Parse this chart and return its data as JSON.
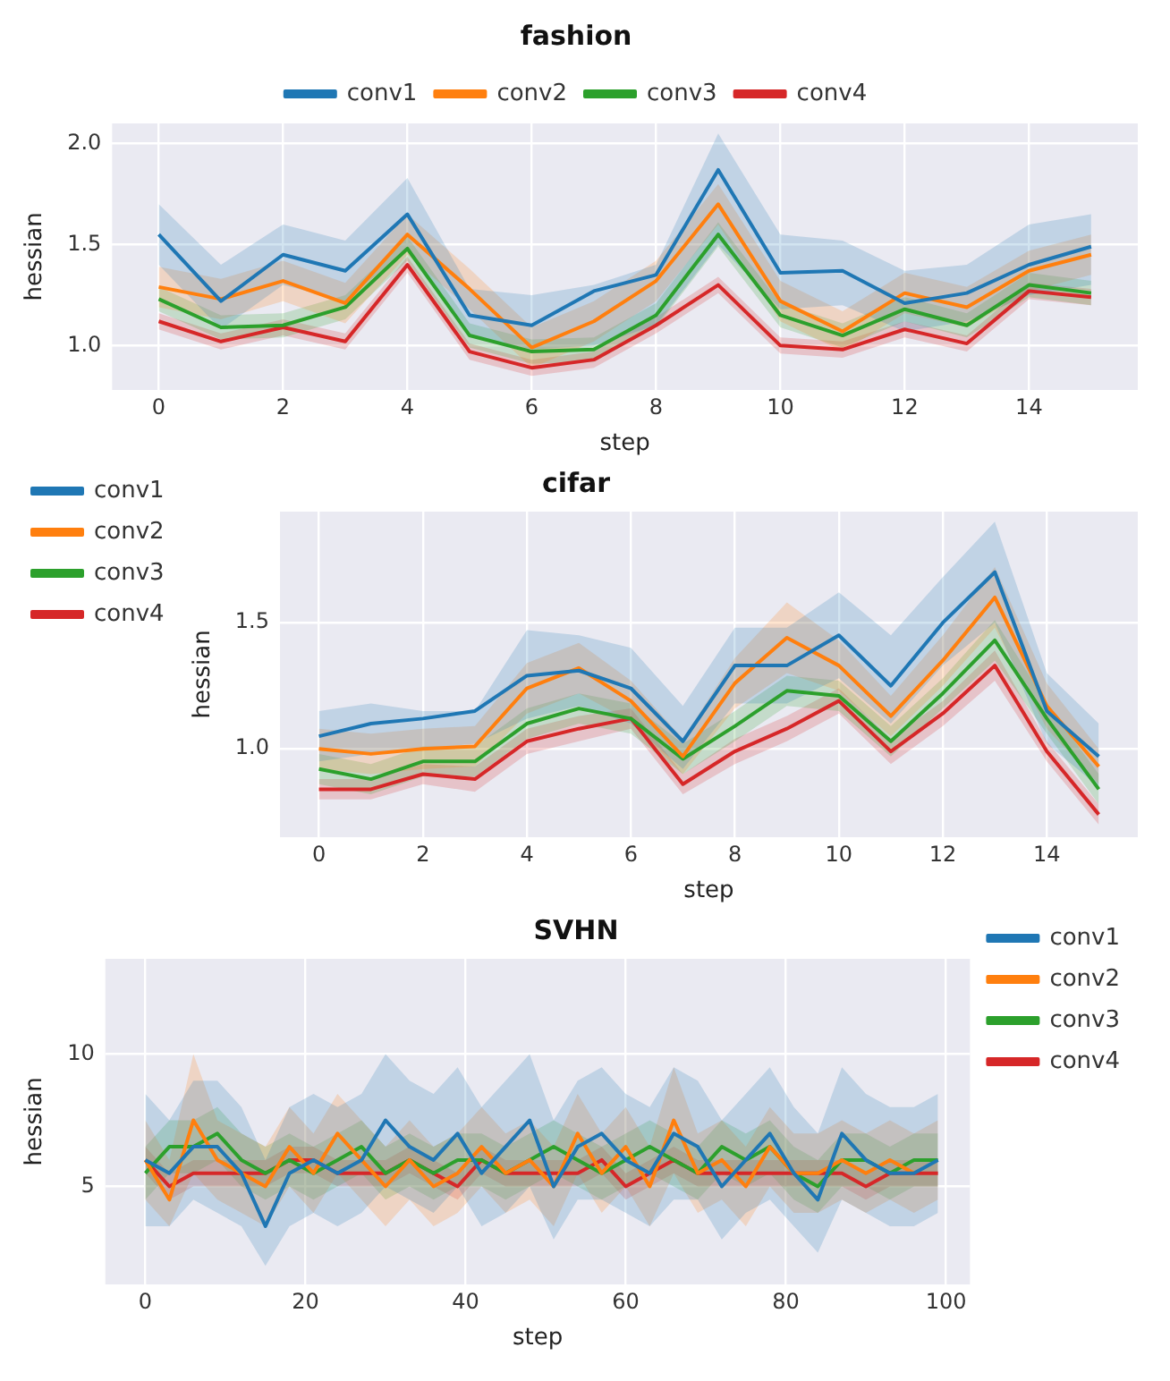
{
  "chart_data": [
    {
      "type": "line",
      "title": "fashion",
      "xlabel": "step",
      "ylabel": "hessian",
      "x": [
        0,
        1,
        2,
        3,
        4,
        5,
        6,
        7,
        8,
        9,
        10,
        11,
        12,
        13,
        14,
        15
      ],
      "xlim": [
        -0.75,
        15.75
      ],
      "xticks": [
        0,
        2,
        4,
        6,
        8,
        10,
        12,
        14
      ],
      "ylim": [
        0.78,
        2.1
      ],
      "yticks": [
        {
          "value": 1,
          "label": "1.0"
        },
        {
          "value": 1.5,
          "label": "1.5"
        },
        {
          "value": 2,
          "label": "2.0"
        }
      ],
      "grid": true,
      "legend": "top",
      "series": [
        {
          "name": "conv1",
          "color": "#1f77b4",
          "values": [
            1.55,
            1.22,
            1.45,
            1.37,
            1.65,
            1.15,
            1.1,
            1.27,
            1.35,
            1.87,
            1.36,
            1.37,
            1.21,
            1.26,
            1.4,
            1.49
          ],
          "lower": [
            1.4,
            1.08,
            1.3,
            1.22,
            1.48,
            1.05,
            0.98,
            1.0,
            1.1,
            1.5,
            1.18,
            1.2,
            1.07,
            1.12,
            1.25,
            1.3
          ],
          "upper": [
            1.7,
            1.4,
            1.6,
            1.52,
            1.83,
            1.28,
            1.25,
            1.3,
            1.4,
            2.05,
            1.55,
            1.52,
            1.37,
            1.4,
            1.6,
            1.65
          ]
        },
        {
          "name": "conv2",
          "color": "#ff7f0e",
          "values": [
            1.29,
            1.23,
            1.32,
            1.21,
            1.55,
            1.28,
            0.99,
            1.12,
            1.32,
            1.7,
            1.22,
            1.07,
            1.26,
            1.19,
            1.37,
            1.45
          ],
          "lower": [
            1.19,
            1.13,
            1.22,
            1.11,
            1.45,
            1.18,
            0.89,
            1.02,
            1.22,
            1.6,
            1.12,
            0.97,
            1.16,
            1.09,
            1.27,
            1.35
          ],
          "upper": [
            1.39,
            1.33,
            1.42,
            1.31,
            1.65,
            1.38,
            1.09,
            1.22,
            1.42,
            1.8,
            1.32,
            1.17,
            1.36,
            1.29,
            1.47,
            1.55
          ]
        },
        {
          "name": "conv3",
          "color": "#2ca02c",
          "values": [
            1.23,
            1.09,
            1.1,
            1.19,
            1.48,
            1.05,
            0.97,
            0.98,
            1.15,
            1.55,
            1.15,
            1.05,
            1.18,
            1.1,
            1.3,
            1.26
          ],
          "lower": [
            1.17,
            1.03,
            1.04,
            1.13,
            1.42,
            0.99,
            0.91,
            0.92,
            1.09,
            1.49,
            1.09,
            0.99,
            1.12,
            1.04,
            1.24,
            1.2
          ],
          "upper": [
            1.29,
            1.15,
            1.16,
            1.25,
            1.54,
            1.11,
            1.03,
            1.04,
            1.21,
            1.61,
            1.21,
            1.11,
            1.24,
            1.16,
            1.36,
            1.32
          ]
        },
        {
          "name": "conv4",
          "color": "#d62728",
          "values": [
            1.12,
            1.02,
            1.09,
            1.02,
            1.4,
            0.97,
            0.89,
            0.93,
            1.1,
            1.3,
            1.0,
            0.98,
            1.08,
            1.01,
            1.27,
            1.24
          ],
          "lower": [
            1.08,
            0.98,
            1.05,
            0.98,
            1.36,
            0.93,
            0.85,
            0.89,
            1.06,
            1.26,
            0.96,
            0.94,
            1.04,
            0.97,
            1.23,
            1.2
          ],
          "upper": [
            1.16,
            1.06,
            1.13,
            1.06,
            1.44,
            1.01,
            0.93,
            0.97,
            1.14,
            1.34,
            1.04,
            1.02,
            1.12,
            1.05,
            1.31,
            1.28
          ]
        }
      ]
    },
    {
      "type": "line",
      "title": "cifar",
      "xlabel": "step",
      "ylabel": "hessian",
      "x": [
        0,
        1,
        2,
        3,
        4,
        5,
        6,
        7,
        8,
        9,
        10,
        11,
        12,
        13,
        14,
        15
      ],
      "xlim": [
        -0.75,
        15.75
      ],
      "xticks": [
        0,
        2,
        4,
        6,
        8,
        10,
        12,
        14
      ],
      "ylim": [
        0.65,
        1.94
      ],
      "yticks": [
        {
          "value": 1,
          "label": "1.0"
        },
        {
          "value": 1.5,
          "label": "1.5"
        }
      ],
      "grid": true,
      "legend": "top left",
      "series": [
        {
          "name": "conv1",
          "color": "#1f77b4",
          "values": [
            1.05,
            1.1,
            1.12,
            1.15,
            1.29,
            1.31,
            1.24,
            1.03,
            1.33,
            1.33,
            1.45,
            1.25,
            1.5,
            1.7,
            1.15,
            0.97
          ],
          "lower": [
            0.95,
            0.98,
            1.0,
            1.02,
            1.12,
            1.17,
            1.1,
            0.92,
            1.18,
            1.18,
            1.28,
            1.1,
            1.33,
            1.5,
            1.02,
            0.85
          ],
          "upper": [
            1.15,
            1.18,
            1.15,
            1.15,
            1.47,
            1.45,
            1.4,
            1.17,
            1.48,
            1.48,
            1.62,
            1.45,
            1.68,
            1.9,
            1.3,
            1.1
          ]
        },
        {
          "name": "conv2",
          "color": "#ff7f0e",
          "values": [
            1.0,
            0.98,
            1.0,
            1.01,
            1.24,
            1.32,
            1.19,
            0.97,
            1.26,
            1.44,
            1.33,
            1.13,
            1.35,
            1.6,
            1.17,
            0.93
          ],
          "lower": [
            0.92,
            0.9,
            0.92,
            0.93,
            1.14,
            1.22,
            1.11,
            0.9,
            1.16,
            1.3,
            1.23,
            1.05,
            1.25,
            1.48,
            1.08,
            0.86
          ],
          "upper": [
            1.08,
            1.06,
            1.08,
            1.09,
            1.34,
            1.42,
            1.27,
            1.04,
            1.36,
            1.58,
            1.43,
            1.21,
            1.45,
            1.72,
            1.26,
            1.0
          ]
        },
        {
          "name": "conv3",
          "color": "#2ca02c",
          "values": [
            0.92,
            0.88,
            0.95,
            0.95,
            1.1,
            1.16,
            1.12,
            0.96,
            1.09,
            1.23,
            1.21,
            1.03,
            1.22,
            1.43,
            1.12,
            0.84
          ],
          "lower": [
            0.86,
            0.82,
            0.89,
            0.89,
            1.04,
            1.1,
            1.06,
            0.9,
            1.03,
            1.17,
            1.15,
            0.97,
            1.16,
            1.35,
            1.06,
            0.78
          ],
          "upper": [
            0.98,
            0.94,
            1.01,
            1.01,
            1.16,
            1.22,
            1.18,
            1.02,
            1.15,
            1.29,
            1.27,
            1.09,
            1.28,
            1.51,
            1.18,
            0.9
          ]
        },
        {
          "name": "conv4",
          "color": "#d62728",
          "values": [
            0.84,
            0.84,
            0.9,
            0.88,
            1.03,
            1.08,
            1.12,
            0.86,
            0.99,
            1.08,
            1.19,
            0.99,
            1.14,
            1.33,
            0.99,
            0.74
          ],
          "lower": [
            0.8,
            0.8,
            0.86,
            0.83,
            0.98,
            1.03,
            1.08,
            0.82,
            0.94,
            1.03,
            1.14,
            0.94,
            1.09,
            1.27,
            0.95,
            0.7
          ],
          "upper": [
            0.88,
            0.88,
            0.94,
            0.93,
            1.08,
            1.13,
            1.16,
            0.9,
            1.04,
            1.13,
            1.24,
            1.04,
            1.19,
            1.39,
            1.03,
            0.78
          ]
        }
      ]
    },
    {
      "type": "line",
      "title": "SVHN",
      "xlabel": "step",
      "ylabel": "hessian",
      "x": [
        0,
        3,
        6,
        9,
        12,
        15,
        18,
        21,
        24,
        27,
        30,
        33,
        36,
        39,
        42,
        45,
        48,
        51,
        54,
        57,
        60,
        63,
        66,
        69,
        72,
        75,
        78,
        81,
        84,
        87,
        90,
        93,
        96,
        99
      ],
      "xlim": [
        -5,
        103
      ],
      "xticks": [
        0,
        20,
        40,
        60,
        80,
        100
      ],
      "ylim": [
        1.3,
        13.6
      ],
      "yticks": [
        5,
        10
      ],
      "grid": true,
      "legend": "top right",
      "series": [
        {
          "name": "conv1",
          "color": "#1f77b4",
          "values": [
            6,
            5.5,
            6.5,
            6.5,
            5.5,
            3.5,
            5.5,
            6,
            5.5,
            6,
            7.5,
            6.5,
            6,
            7,
            5.5,
            6.5,
            7.5,
            5,
            6.5,
            7,
            6,
            5.5,
            7,
            6.5,
            5,
            6,
            7,
            5.5,
            4.5,
            7,
            6,
            5.5,
            5.5,
            6
          ],
          "lower": [
            3.5,
            3.5,
            4.5,
            4,
            3.5,
            2,
            3.5,
            4,
            3.5,
            4,
            5,
            4.5,
            4,
            5,
            3.5,
            4,
            5,
            3,
            4.5,
            4.5,
            4,
            3.5,
            4.5,
            4.5,
            3,
            4,
            4.5,
            3.5,
            2.5,
            4.5,
            4,
            3.5,
            3.5,
            4
          ],
          "upper": [
            8.5,
            7.5,
            9,
            9,
            8,
            6,
            8,
            8.5,
            8,
            8.5,
            10,
            9,
            8.5,
            9.5,
            8,
            9,
            10,
            7.5,
            9,
            9.5,
            8.5,
            8,
            9.5,
            9,
            7.5,
            8.5,
            9.5,
            8,
            7,
            9.5,
            8.5,
            8,
            8,
            8.5
          ]
        },
        {
          "name": "conv2",
          "color": "#ff7f0e",
          "values": [
            6,
            4.5,
            7.5,
            6,
            5.5,
            5,
            6.5,
            5.5,
            7,
            6,
            5,
            6,
            5,
            5.5,
            6.5,
            5.5,
            6,
            5,
            7,
            5.5,
            6.5,
            5,
            7.5,
            5.5,
            6,
            5,
            6.5,
            5.5,
            5.5,
            6,
            5.5,
            6,
            5.5,
            null
          ],
          "lower": [
            4.5,
            3.5,
            5.5,
            4.5,
            4,
            3.5,
            5,
            4,
            5.5,
            4.5,
            3.5,
            4.5,
            3.5,
            4,
            5,
            4,
            4.5,
            3.5,
            5.5,
            4,
            5,
            3.5,
            5.5,
            4,
            4.5,
            3.5,
            5,
            4,
            4,
            4.5,
            4,
            4.5,
            4,
            4.5
          ],
          "upper": [
            7.5,
            6,
            10,
            7.5,
            7,
            6.5,
            8,
            7,
            8.5,
            7.5,
            6.5,
            7.5,
            6.5,
            7,
            8,
            7,
            7.5,
            6.5,
            8.5,
            7,
            8,
            6.5,
            9.5,
            7,
            7.5,
            6.5,
            8,
            7,
            7,
            7.5,
            7,
            7.5,
            7,
            7.5
          ]
        },
        {
          "name": "conv3",
          "color": "#2ca02c",
          "values": [
            5.5,
            6.5,
            6.5,
            7,
            6,
            5.5,
            6,
            5.5,
            6,
            6.5,
            5.5,
            6,
            5.5,
            6,
            6,
            5.5,
            6,
            6.5,
            6,
            5.5,
            6,
            6.5,
            6,
            5.5,
            6.5,
            6,
            6.5,
            5.5,
            5,
            6,
            6,
            5.5,
            6,
            6
          ],
          "lower": [
            4.5,
            5.5,
            5.5,
            6,
            5,
            4.5,
            5,
            4.5,
            5,
            5.5,
            4.5,
            5,
            4.5,
            5,
            5,
            4.5,
            5,
            5.5,
            5,
            4.5,
            5,
            5.5,
            5,
            4.5,
            5.5,
            5,
            5.5,
            4.5,
            4,
            5,
            5,
            4.5,
            5,
            5
          ],
          "upper": [
            6.5,
            7.5,
            7.5,
            8,
            7,
            6.5,
            7,
            6.5,
            7,
            7.5,
            6.5,
            7,
            6.5,
            7,
            7,
            6.5,
            7,
            7.5,
            7,
            6.5,
            7,
            7.5,
            7,
            6.5,
            7.5,
            7,
            7.5,
            6.5,
            6,
            7,
            7,
            6.5,
            7,
            7
          ]
        },
        {
          "name": "conv4",
          "color": "#d62728",
          "values": [
            6,
            5,
            5.5,
            5.5,
            5.5,
            5.5,
            6,
            6,
            5.5,
            5.5,
            5.5,
            6,
            5.5,
            5,
            6,
            5.5,
            5.5,
            5.5,
            5.5,
            6,
            5,
            5.5,
            6,
            5.5,
            5.5,
            5.5,
            5.5,
            5.5,
            5.5,
            5.5,
            5,
            5.5,
            5.5,
            5.5
          ],
          "lower": [
            5.5,
            4.5,
            5,
            5,
            5,
            5,
            5.5,
            5.5,
            5,
            5,
            5,
            5.5,
            5,
            4.5,
            5.5,
            5,
            5,
            5,
            5,
            5.5,
            4.5,
            5,
            5.5,
            5,
            5,
            5,
            5,
            5,
            5,
            5,
            4.5,
            5,
            5,
            5
          ],
          "upper": [
            6.5,
            5.5,
            6,
            6,
            6,
            6,
            6.5,
            6.5,
            6,
            6,
            6,
            6.5,
            6,
            5.5,
            6.5,
            6,
            6,
            6,
            6,
            6.5,
            5.5,
            6,
            6.5,
            6,
            6,
            6,
            6,
            6,
            6,
            6,
            5.5,
            6,
            6,
            6
          ]
        }
      ]
    }
  ]
}
